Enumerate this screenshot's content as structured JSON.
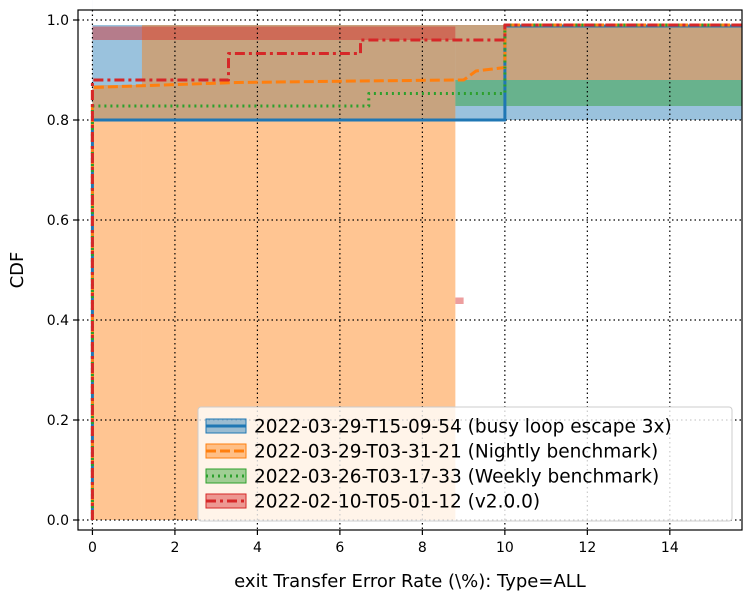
{
  "chart_data": {
    "type": "line",
    "subtype": "cdf-step",
    "title": "",
    "xlabel": "exit Transfer Error Rate (\\%): Type=ALL",
    "ylabel": "CDF",
    "xlim": [
      -0.35,
      15.75
    ],
    "ylim": [
      -0.02,
      1.02
    ],
    "xticks": [
      0,
      2,
      4,
      6,
      8,
      10,
      12,
      14
    ],
    "yticks": [
      0.0,
      0.2,
      0.4,
      0.6,
      0.8,
      1.0
    ],
    "xtick_labels": [
      "0",
      "2",
      "4",
      "6",
      "8",
      "10",
      "12",
      "14"
    ],
    "ytick_labels": [
      "0.0",
      "0.2",
      "0.4",
      "0.6",
      "0.8",
      "1.0"
    ],
    "grid": true,
    "legend_position": "lower-right",
    "series": [
      {
        "name": "2022-03-29-T15-09-54 (busy loop escape 3x)",
        "color": "#1f77b4",
        "style": "solid",
        "points": [
          [
            0,
            0
          ],
          [
            0,
            0.8
          ],
          [
            10.0,
            0.8
          ],
          [
            10.0,
            0.988
          ],
          [
            15.75,
            0.988
          ]
        ],
        "band": [
          [
            0,
            0,
            8.8
          ],
          [
            0,
            0.8,
            0.99
          ],
          [
            8.8,
            0.8,
            0.99
          ],
          [
            10.0,
            0.8,
            0.99
          ],
          [
            15.75,
            0.8,
            0.99
          ]
        ]
      },
      {
        "name": "2022-03-29-T03-31-21 (Nightly benchmark)",
        "color": "#ff7f0e",
        "style": "dashed",
        "points": [
          [
            0,
            0
          ],
          [
            0,
            0.865
          ],
          [
            1.0,
            0.868
          ],
          [
            3.5,
            0.875
          ],
          [
            6.5,
            0.878
          ],
          [
            8.8,
            0.88
          ],
          [
            9.0,
            0.88
          ],
          [
            9.3,
            0.898
          ],
          [
            10.0,
            0.905
          ],
          [
            10.0,
            0.99
          ],
          [
            15.75,
            0.99
          ]
        ],
        "band": [
          [
            0,
            0,
            0.87
          ],
          [
            1.2,
            0,
            0.99
          ],
          [
            8.8,
            0.88,
            0.99
          ],
          [
            15.75,
            0.88,
            0.99
          ]
        ]
      },
      {
        "name": "2022-03-26-T03-17-33 (Weekly benchmark)",
        "color": "#2ca02c",
        "style": "dotted",
        "points": [
          [
            0,
            0
          ],
          [
            0,
            0.828
          ],
          [
            6.7,
            0.828
          ],
          [
            6.7,
            0.853
          ],
          [
            10.0,
            0.853
          ],
          [
            10.0,
            0.99
          ],
          [
            15.75,
            0.99
          ]
        ],
        "band": [
          [
            8.8,
            0.828,
            0.88
          ],
          [
            15.75,
            0.828,
            0.88
          ]
        ]
      },
      {
        "name": "2022-02-10-T05-01-12 (v2.0.0)",
        "color": "#d62728",
        "style": "dashdot",
        "points": [
          [
            0,
            0
          ],
          [
            0,
            0.88
          ],
          [
            3.3,
            0.88
          ],
          [
            3.3,
            0.933
          ],
          [
            6.5,
            0.933
          ],
          [
            6.5,
            0.96
          ],
          [
            10.0,
            0.96
          ],
          [
            10.0,
            0.99
          ],
          [
            15.75,
            0.99
          ]
        ],
        "band": [
          [
            0,
            0.855,
            0.96
          ],
          [
            0,
            0.96,
            0.987
          ],
          [
            8.8,
            0.432,
            0.445
          ],
          [
            9.0,
            0.432,
            0.445
          ]
        ]
      }
    ]
  }
}
